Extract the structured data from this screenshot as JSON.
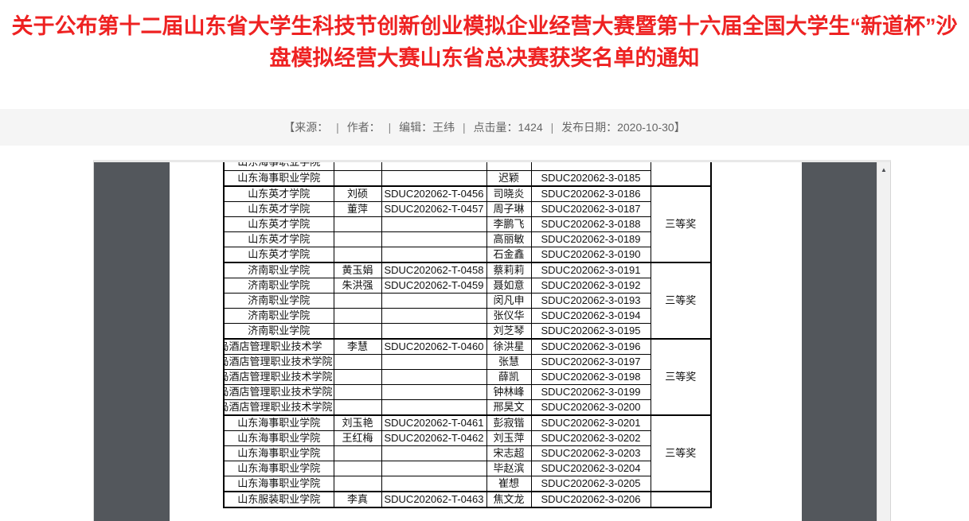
{
  "article": {
    "title": "关于公布第十二届山东省大学生科技节创新创业模拟企业经营大赛暨第十六届全国大学生“新道杯”沙盘模拟经营大赛山东省总决赛获奖名单的通知",
    "title_color": "#ee2222"
  },
  "meta": {
    "separator": "|",
    "parts": [
      "【来源：",
      "作者：",
      "编辑：王纬",
      "点击量：1424",
      "发布日期：2020-10-30】"
    ]
  },
  "viewer": {
    "scrollbar_up_icon": "▲",
    "colors": {
      "viewer_background": "#53575c",
      "page_background": "#ffffff",
      "scrollbar_track": "#f1f1f1",
      "table_border": "#000000"
    },
    "table": {
      "groups": [
        {
          "award": "",
          "rows": [
            {
              "school": "山东海事职业学院",
              "leader": "",
              "team_code": "",
              "member": "",
              "member_code": "",
              "clipped": true
            },
            {
              "school": "山东海事职业学院",
              "leader": "",
              "team_code": "",
              "member": "迟颖",
              "member_code": "SDUC202062-3-0185"
            }
          ]
        },
        {
          "award": "三等奖",
          "rows": [
            {
              "school": "山东英才学院",
              "leader": "刘硕",
              "team_code": "SDUC202062-T-0456",
              "member": "司晓炎",
              "member_code": "SDUC202062-3-0186"
            },
            {
              "school": "山东英才学院",
              "leader": "董萍",
              "team_code": "SDUC202062-T-0457",
              "member": "周子琳",
              "member_code": "SDUC202062-3-0187"
            },
            {
              "school": "山东英才学院",
              "leader": "",
              "team_code": "",
              "member": "李鹏飞",
              "member_code": "SDUC202062-3-0188"
            },
            {
              "school": "山东英才学院",
              "leader": "",
              "team_code": "",
              "member": "高丽敏",
              "member_code": "SDUC202062-3-0189"
            },
            {
              "school": "山东英才学院",
              "leader": "",
              "team_code": "",
              "member": "石金鑫",
              "member_code": "SDUC202062-3-0190"
            }
          ]
        },
        {
          "award": "三等奖",
          "rows": [
            {
              "school": "济南职业学院",
              "leader": "黄玉娟",
              "team_code": "SDUC202062-T-0458",
              "member": "蔡莉莉",
              "member_code": "SDUC202062-3-0191"
            },
            {
              "school": "济南职业学院",
              "leader": "朱洪强",
              "team_code": "SDUC202062-T-0459",
              "member": "聂如意",
              "member_code": "SDUC202062-3-0192"
            },
            {
              "school": "济南职业学院",
              "leader": "",
              "team_code": "",
              "member": "闵凡申",
              "member_code": "SDUC202062-3-0193"
            },
            {
              "school": "济南职业学院",
              "leader": "",
              "team_code": "",
              "member": "张仪华",
              "member_code": "SDUC202062-3-0194"
            },
            {
              "school": "济南职业学院",
              "leader": "",
              "team_code": "",
              "member": "刘芝琴",
              "member_code": "SDUC202062-3-0195"
            }
          ]
        },
        {
          "award": "三等奖",
          "school_overflow": true,
          "rows": [
            {
              "school": "青岛酒店管理职业技术学院",
              "leader": "李慧",
              "team_code": "SDUC202062-T-0460",
              "member": "徐洪星",
              "member_code": "SDUC202062-3-0196"
            },
            {
              "school": "青岛酒店管理职业技术学院",
              "leader": "",
              "team_code": "",
              "member": "张慧",
              "member_code": "SDUC202062-3-0197"
            },
            {
              "school": "青岛酒店管理职业技术学院",
              "leader": "",
              "team_code": "",
              "member": "薛凯",
              "member_code": "SDUC202062-3-0198"
            },
            {
              "school": "青岛酒店管理职业技术学院",
              "leader": "",
              "team_code": "",
              "member": "钟林峰",
              "member_code": "SDUC202062-3-0199"
            },
            {
              "school": "青岛酒店管理职业技术学院",
              "leader": "",
              "team_code": "",
              "member": "邢昊文",
              "member_code": "SDUC202062-3-0200"
            }
          ]
        },
        {
          "award": "三等奖",
          "rows": [
            {
              "school": "山东海事职业学院",
              "leader": "刘玉艳",
              "team_code": "SDUC202062-T-0461",
              "member": "彭寂锴",
              "member_code": "SDUC202062-3-0201"
            },
            {
              "school": "山东海事职业学院",
              "leader": "王红梅",
              "team_code": "SDUC202062-T-0462",
              "member": "刘玉萍",
              "member_code": "SDUC202062-3-0202"
            },
            {
              "school": "山东海事职业学院",
              "leader": "",
              "team_code": "",
              "member": "宋志超",
              "member_code": "SDUC202062-3-0203"
            },
            {
              "school": "山东海事职业学院",
              "leader": "",
              "team_code": "",
              "member": "毕赵滨",
              "member_code": "SDUC202062-3-0204"
            },
            {
              "school": "山东海事职业学院",
              "leader": "",
              "team_code": "",
              "member": "崔想",
              "member_code": "SDUC202062-3-0205"
            }
          ]
        },
        {
          "award": "",
          "rows": [
            {
              "school": "山东服装职业学院",
              "leader": "李真",
              "team_code": "SDUC202062-T-0463",
              "member": "焦文龙",
              "member_code": "SDUC202062-3-0206"
            }
          ]
        }
      ]
    }
  }
}
